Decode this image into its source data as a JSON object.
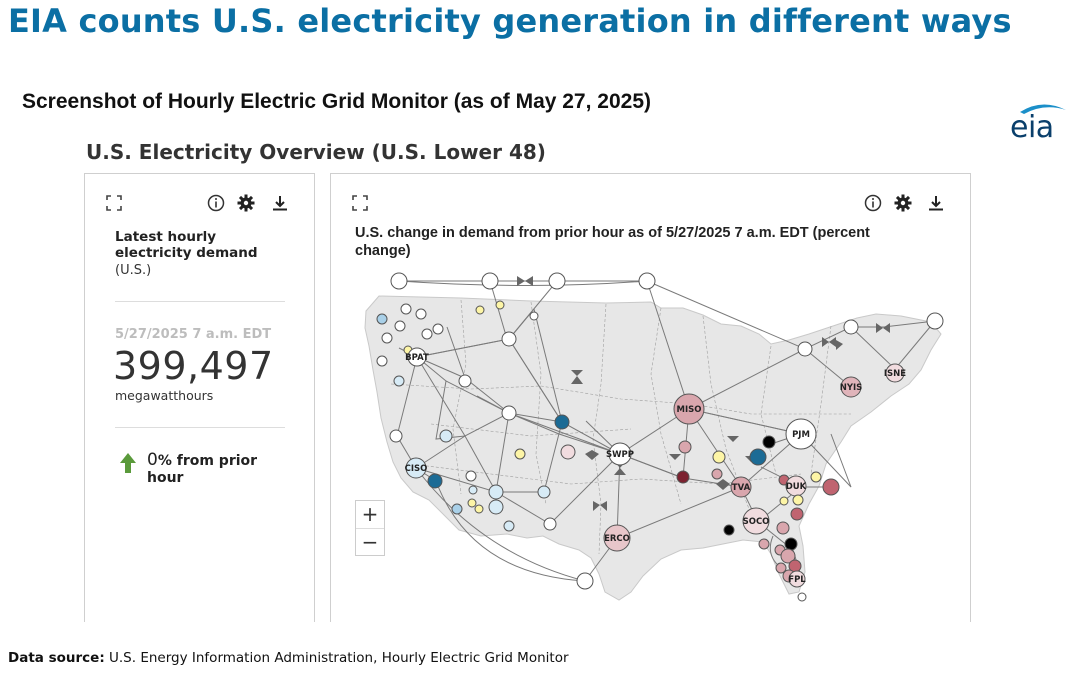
{
  "slide": {
    "title": "EIA counts U.S. electricity generation in different ways",
    "subtitle": "Screenshot of Hourly Electric Grid Monitor (as of May 27, 2025)",
    "logo_text": "eia",
    "overview_title": "U.S. Electricity Overview (U.S. Lower 48)",
    "source_label": "Data source:",
    "source_text": " U.S. Energy Information Administration, Hourly Electric Grid Monitor"
  },
  "left_panel": {
    "heading": "Latest hourly electricity demand",
    "scope": "(U.S.)",
    "date": "5/27/2025 7 a.m. EDT",
    "value": "399,497",
    "unit": "megawatthours",
    "change_value": "0",
    "change_text": "% from prior hour",
    "toolbar": [
      "expand-icon",
      "info-icon",
      "gear-icon",
      "download-icon"
    ]
  },
  "right_panel": {
    "chart_title": "U.S. change in demand from prior hour as of 5/27/2025 7 a.m. EDT (percent change)",
    "zoom_in": "+",
    "zoom_out": "−",
    "toolbar": [
      "expand-icon",
      "info-icon",
      "gear-icon",
      "download-icon"
    ],
    "labeled_nodes": [
      "BPAT",
      "CISO",
      "SWPP",
      "ERCO",
      "MISO",
      "PJM",
      "NYIS",
      "ISNE",
      "TVA",
      "DUK",
      "SOCO",
      "FPL"
    ]
  },
  "colors": {
    "title_blue": "#0b6fa4",
    "logo_navy": "#0a3f6b",
    "logo_swoosh": "#1b8fc9",
    "up_arrow_green": "#5a9a3b",
    "map_land": "#e7e7e7",
    "node_white": "#ffffff",
    "node_light_blue": "#d7ebf6",
    "node_blue": "#1c6b95",
    "node_yellow": "#fdf5a6",
    "node_pink": "#d9a6ad",
    "node_light_pink": "#f1dcdf",
    "node_red": "#c06470",
    "node_dark_red": "#7c2230",
    "node_black": "#000000"
  }
}
